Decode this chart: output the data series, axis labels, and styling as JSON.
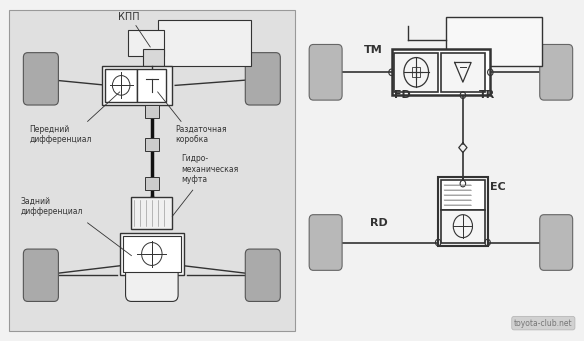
{
  "bg_color": "#f2f2f2",
  "panel_bg": "#e0e0e0",
  "white": "#ffffff",
  "gray": "#aaaaaa",
  "dark": "#333333",
  "line_gray": "#999999",
  "watermark": "toyota-club.net",
  "left_labels": {
    "kpp": "КПП",
    "front_diff": "Передний\nдифференциал",
    "transfer_case": "Раздаточная\nкоробка",
    "rear_diff": "Задний\nдифференциал",
    "hydro": "Гидро-\nмеханическая\nмуфта"
  },
  "right_labels": {
    "TM": "TM",
    "FD": "FD",
    "TR": "TR",
    "EC": "EC",
    "RD": "RD"
  }
}
